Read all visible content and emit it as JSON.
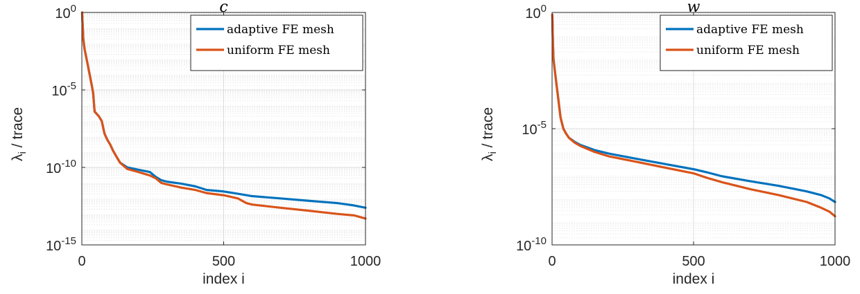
{
  "chart_data": [
    {
      "type": "line",
      "title": "c",
      "xlabel": "index i",
      "ylabel": "λi / trace",
      "ylabel_main": "λ",
      "ylabel_sub": "i",
      "ylabel_rest": " / trace",
      "yscale": "log",
      "xlim": [
        0,
        1000
      ],
      "ylim": [
        1e-15,
        1
      ],
      "x_ticks": [
        {
          "value": 0,
          "label": "0"
        },
        {
          "value": 500,
          "label": "500"
        },
        {
          "value": 1000,
          "label": "1000"
        }
      ],
      "y_ticks": [
        {
          "exp": 0,
          "base": "10",
          "sup": "0"
        },
        {
          "exp": -5,
          "base": "10",
          "sup": "-5"
        },
        {
          "exp": -10,
          "base": "10",
          "sup": "-10"
        },
        {
          "exp": -15,
          "base": "10",
          "sup": "-15"
        }
      ],
      "grid": true,
      "legend": "top-right",
      "series": [
        {
          "name": "adaptive FE mesh",
          "color": "#0072bd",
          "points": [
            [
              1,
              1.0
            ],
            [
              5,
              0.02
            ],
            [
              10,
              0.004
            ],
            [
              20,
              0.0005
            ],
            [
              35,
              2e-05
            ],
            [
              40,
              6e-06
            ],
            [
              45,
              4e-07
            ],
            [
              60,
              2e-07
            ],
            [
              70,
              1e-07
            ],
            [
              80,
              1.5e-08
            ],
            [
              90,
              6e-09
            ],
            [
              100,
              3e-09
            ],
            [
              110,
              1.2e-09
            ],
            [
              125,
              4e-10
            ],
            [
              135,
              2e-10
            ],
            [
              160,
              1e-10
            ],
            [
              200,
              7e-11
            ],
            [
              240,
              5e-11
            ],
            [
              260,
              2.5e-11
            ],
            [
              280,
              1.5e-11
            ],
            [
              300,
              1.2e-11
            ],
            [
              350,
              9e-12
            ],
            [
              400,
              6e-12
            ],
            [
              440,
              3.5e-12
            ],
            [
              500,
              2.8e-12
            ],
            [
              550,
              2e-12
            ],
            [
              600,
              1.4e-12
            ],
            [
              700,
              1e-12
            ],
            [
              800,
              7e-13
            ],
            [
              900,
              5e-13
            ],
            [
              960,
              3.5e-13
            ],
            [
              1000,
              2.5e-13
            ]
          ]
        },
        {
          "name": "uniform FE mesh",
          "color": "#d95319",
          "points": [
            [
              1,
              1.0
            ],
            [
              5,
              0.02
            ],
            [
              10,
              0.004
            ],
            [
              20,
              0.0005
            ],
            [
              35,
              2e-05
            ],
            [
              40,
              6e-06
            ],
            [
              45,
              4e-07
            ],
            [
              60,
              2e-07
            ],
            [
              70,
              1e-07
            ],
            [
              80,
              1.5e-08
            ],
            [
              90,
              6e-09
            ],
            [
              100,
              3e-09
            ],
            [
              110,
              1.2e-09
            ],
            [
              125,
              4e-10
            ],
            [
              135,
              2e-10
            ],
            [
              160,
              8e-11
            ],
            [
              200,
              5e-11
            ],
            [
              240,
              3e-11
            ],
            [
              260,
              2e-11
            ],
            [
              280,
              1e-11
            ],
            [
              300,
              8e-12
            ],
            [
              350,
              5e-12
            ],
            [
              400,
              3.5e-12
            ],
            [
              440,
              2.2e-12
            ],
            [
              500,
              1.6e-12
            ],
            [
              550,
              1e-12
            ],
            [
              580,
              5e-13
            ],
            [
              600,
              4e-13
            ],
            [
              700,
              2.5e-13
            ],
            [
              800,
              1.6e-13
            ],
            [
              900,
              1e-13
            ],
            [
              960,
              8e-14
            ],
            [
              1000,
              5e-14
            ]
          ]
        }
      ]
    },
    {
      "type": "line",
      "title": "w",
      "xlabel": "index i",
      "ylabel": "λi / trace",
      "ylabel_main": "λ",
      "ylabel_sub": "i",
      "ylabel_rest": " / trace",
      "yscale": "log",
      "xlim": [
        0,
        1000
      ],
      "ylim": [
        1e-10,
        1
      ],
      "x_ticks": [
        {
          "value": 0,
          "label": "0"
        },
        {
          "value": 500,
          "label": "500"
        },
        {
          "value": 1000,
          "label": "1000"
        }
      ],
      "y_ticks": [
        {
          "exp": 0,
          "base": "10",
          "sup": "0"
        },
        {
          "exp": -5,
          "base": "10",
          "sup": "-5"
        },
        {
          "exp": -10,
          "base": "10",
          "sup": "-10"
        }
      ],
      "grid": true,
      "legend": "top-right",
      "series": [
        {
          "name": "adaptive FE mesh",
          "color": "#0072bd",
          "points": [
            [
              1,
              0.8
            ],
            [
              3,
              0.05
            ],
            [
              5,
              0.01
            ],
            [
              10,
              0.003
            ],
            [
              20,
              0.0003
            ],
            [
              30,
              3e-05
            ],
            [
              40,
              1e-05
            ],
            [
              50,
              6e-06
            ],
            [
              60,
              4e-06
            ],
            [
              80,
              2.7e-06
            ],
            [
              100,
              2e-06
            ],
            [
              150,
              1.2e-06
            ],
            [
              200,
              8.5e-07
            ],
            [
              300,
              5e-07
            ],
            [
              400,
              3e-07
            ],
            [
              500,
              1.8e-07
            ],
            [
              550,
              1.3e-07
            ],
            [
              600,
              9e-08
            ],
            [
              700,
              5.5e-08
            ],
            [
              800,
              3.5e-08
            ],
            [
              900,
              2e-08
            ],
            [
              950,
              1.4e-08
            ],
            [
              980,
              1e-08
            ],
            [
              1000,
              7e-09
            ]
          ]
        },
        {
          "name": "uniform FE mesh",
          "color": "#d95319",
          "points": [
            [
              1,
              0.8
            ],
            [
              3,
              0.05
            ],
            [
              5,
              0.01
            ],
            [
              10,
              0.003
            ],
            [
              20,
              0.0003
            ],
            [
              30,
              3e-05
            ],
            [
              40,
              1e-05
            ],
            [
              50,
              6e-06
            ],
            [
              60,
              4e-06
            ],
            [
              80,
              2.5e-06
            ],
            [
              100,
              1.8e-06
            ],
            [
              150,
              1e-06
            ],
            [
              200,
              6.5e-07
            ],
            [
              300,
              3.7e-07
            ],
            [
              400,
              2.1e-07
            ],
            [
              500,
              1.2e-07
            ],
            [
              550,
              7.5e-08
            ],
            [
              600,
              5e-08
            ],
            [
              700,
              2.5e-08
            ],
            [
              800,
              1.4e-08
            ],
            [
              900,
              7e-09
            ],
            [
              950,
              4e-09
            ],
            [
              980,
              2.7e-09
            ],
            [
              1000,
              1.7e-09
            ]
          ]
        }
      ]
    }
  ]
}
